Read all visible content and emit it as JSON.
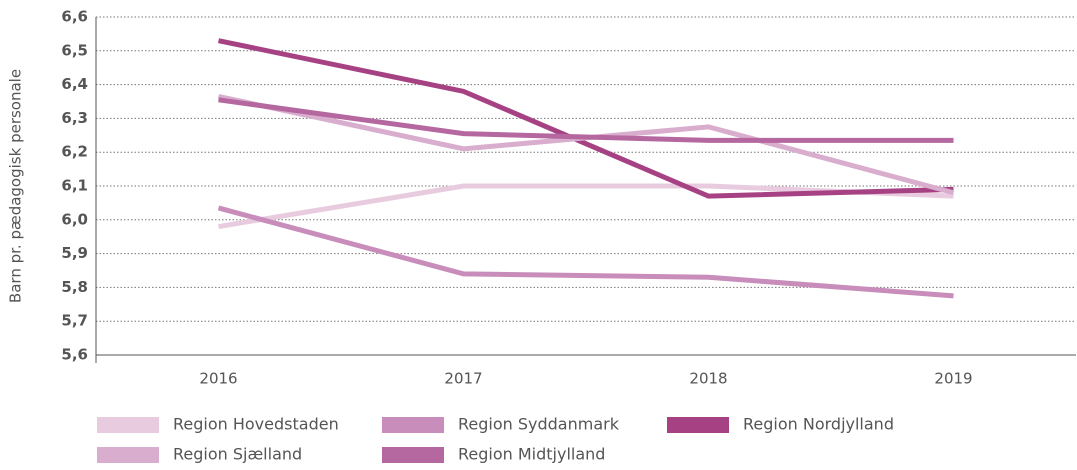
{
  "chart_data": {
    "type": "line",
    "ylabel": "Barn pr. pædagogisk personale",
    "categories": [
      "2016",
      "2017",
      "2018",
      "2019"
    ],
    "series": [
      {
        "name": "Region Hovedstaden",
        "color": "#e9cbdf",
        "values": [
          5.98,
          6.1,
          6.1,
          6.07
        ]
      },
      {
        "name": "Region Syddanmark",
        "color": "#c88dba",
        "values": [
          6.035,
          5.84,
          5.83,
          5.775
        ]
      },
      {
        "name": "Region Nordjylland",
        "color": "#a64283",
        "values": [
          6.53,
          6.38,
          6.07,
          6.09
        ]
      },
      {
        "name": "Region Sjælland",
        "color": "#d8adcd",
        "values": [
          6.365,
          6.21,
          6.275,
          6.08
        ]
      },
      {
        "name": "Region Midtjylland",
        "color": "#b5679f",
        "values": [
          6.355,
          6.255,
          6.235,
          6.235
        ]
      }
    ],
    "ylim": [
      5.6,
      6.6
    ],
    "yticks": [
      {
        "value": 5.6,
        "label": "5,6"
      },
      {
        "value": 5.7,
        "label": "5,7"
      },
      {
        "value": 5.8,
        "label": "5,8"
      },
      {
        "value": 5.9,
        "label": "5,9"
      },
      {
        "value": 6.0,
        "label": "6,0"
      },
      {
        "value": 6.1,
        "label": "6,1"
      },
      {
        "value": 6.2,
        "label": "6,2"
      },
      {
        "value": 6.3,
        "label": "6,3"
      },
      {
        "value": 6.4,
        "label": "6,4"
      },
      {
        "value": 6.5,
        "label": "6,5"
      },
      {
        "value": 6.6,
        "label": "6,6"
      }
    ],
    "grid": true
  }
}
